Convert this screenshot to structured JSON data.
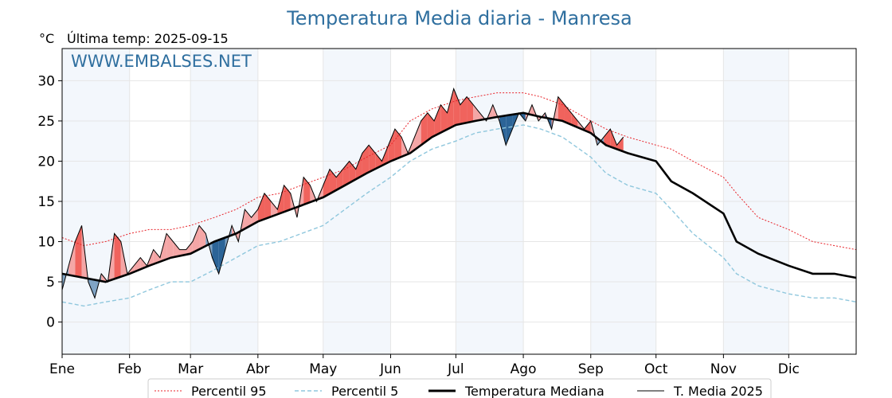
{
  "chart_data": {
    "type": "line",
    "title": "Temperatura Media diaria - Manresa",
    "unit_label": "°C",
    "last_temp_label": "Última temp: 2025-09-15",
    "watermark": "WWW.EMBALSES.NET",
    "ylim": [
      -4,
      34
    ],
    "yticks": [
      0,
      5,
      10,
      15,
      20,
      25,
      30
    ],
    "xlim": [
      0,
      365
    ],
    "month_labels": [
      "Ene",
      "Feb",
      "Mar",
      "Abr",
      "May",
      "Jun",
      "Jul",
      "Ago",
      "Sep",
      "Oct",
      "Nov",
      "Dic"
    ],
    "month_starts": [
      0,
      31,
      59,
      90,
      120,
      151,
      181,
      212,
      243,
      273,
      304,
      334
    ],
    "grid": true,
    "legend_position": "bottom",
    "colors": {
      "p95": "#e8232a",
      "p5": "#8fc7dd",
      "median": "#000000",
      "current": "#000000",
      "above": "#f4a6a6",
      "above_strong": "#f0635d",
      "below": "#7fa3c4",
      "below_strong": "#2c6497",
      "title": "#2f6f9f",
      "shade": "#f3f7fc"
    },
    "series": [
      {
        "name": "Percentil 95",
        "style": "dotted-red",
        "x": [
          0,
          10,
          20,
          31,
          40,
          50,
          59,
          70,
          80,
          90,
          100,
          110,
          120,
          130,
          140,
          151,
          160,
          170,
          181,
          190,
          200,
          212,
          220,
          230,
          243,
          250,
          260,
          273,
          280,
          290,
          304,
          310,
          320,
          334,
          345,
          355,
          365
        ],
        "values": [
          10.5,
          9.5,
          10,
          11,
          11.5,
          11.5,
          12,
          13,
          14,
          15.5,
          16,
          17,
          18,
          19,
          20.5,
          22,
          25,
          26.5,
          27.5,
          28,
          28.5,
          28.5,
          28,
          27,
          25,
          24,
          23,
          22,
          21.5,
          20,
          18,
          16,
          13,
          11.5,
          10,
          9.5,
          9
        ]
      },
      {
        "name": "Percentil 5",
        "style": "dashed-lightblue",
        "x": [
          0,
          10,
          20,
          31,
          40,
          50,
          59,
          70,
          80,
          90,
          100,
          110,
          120,
          130,
          140,
          151,
          160,
          170,
          181,
          190,
          200,
          212,
          220,
          230,
          243,
          250,
          260,
          273,
          280,
          290,
          304,
          310,
          320,
          334,
          345,
          355,
          365
        ],
        "values": [
          2.5,
          2,
          2.5,
          3,
          4,
          5,
          5,
          6.5,
          8,
          9.5,
          10,
          11,
          12,
          14,
          16,
          18,
          20,
          21.5,
          22.5,
          23.5,
          24,
          24.5,
          24,
          23,
          20.5,
          18.5,
          17,
          16,
          14,
          11,
          8,
          6,
          4.5,
          3.5,
          3,
          3,
          2.5
        ]
      },
      {
        "name": "Temperatura Mediana",
        "style": "thick-black",
        "x": [
          0,
          10,
          20,
          31,
          40,
          50,
          59,
          70,
          80,
          90,
          100,
          110,
          120,
          130,
          140,
          151,
          160,
          170,
          181,
          190,
          200,
          212,
          220,
          230,
          243,
          250,
          260,
          273,
          280,
          290,
          304,
          310,
          320,
          334,
          345,
          355,
          365
        ],
        "values": [
          6,
          5.5,
          5,
          6,
          7,
          8,
          8.5,
          10,
          11,
          12.5,
          13.5,
          14.5,
          15.5,
          17,
          18.5,
          20,
          21,
          23,
          24.5,
          25,
          25.5,
          26,
          25.5,
          25,
          23.5,
          22,
          21,
          20,
          17.5,
          16,
          13.5,
          10,
          8.5,
          7,
          6,
          6,
          5.5
        ]
      },
      {
        "name": "T. Media 2025",
        "style": "thin-black",
        "x": [
          0,
          3,
          6,
          9,
          12,
          15,
          18,
          21,
          24,
          27,
          30,
          33,
          36,
          39,
          42,
          45,
          48,
          51,
          54,
          57,
          60,
          63,
          66,
          69,
          72,
          75,
          78,
          81,
          84,
          87,
          90,
          93,
          96,
          99,
          102,
          105,
          108,
          111,
          114,
          117,
          120,
          123,
          126,
          129,
          132,
          135,
          138,
          141,
          144,
          147,
          150,
          153,
          156,
          159,
          162,
          165,
          168,
          171,
          174,
          177,
          180,
          183,
          186,
          189,
          192,
          195,
          198,
          201,
          204,
          207,
          210,
          213,
          216,
          219,
          222,
          225,
          228,
          231,
          234,
          237,
          240,
          243,
          246,
          249,
          252,
          255,
          258
        ],
        "values": [
          4,
          7,
          10,
          12,
          5,
          3,
          6,
          5,
          11,
          10,
          6,
          7,
          8,
          7,
          9,
          8,
          11,
          10,
          9,
          9,
          10,
          12,
          11,
          8,
          6,
          9,
          12,
          10,
          14,
          13,
          14,
          16,
          15,
          14,
          17,
          16,
          13,
          18,
          17,
          15,
          17,
          19,
          18,
          19,
          20,
          19,
          21,
          22,
          21,
          20,
          22,
          24,
          23,
          21,
          23,
          25,
          26,
          25,
          27,
          26,
          29,
          27,
          28,
          27,
          26,
          25,
          27,
          25,
          22,
          24,
          26,
          25,
          27,
          25,
          26,
          24,
          28,
          27,
          26,
          25,
          24,
          25,
          22,
          23,
          24,
          22,
          23
        ]
      }
    ]
  }
}
